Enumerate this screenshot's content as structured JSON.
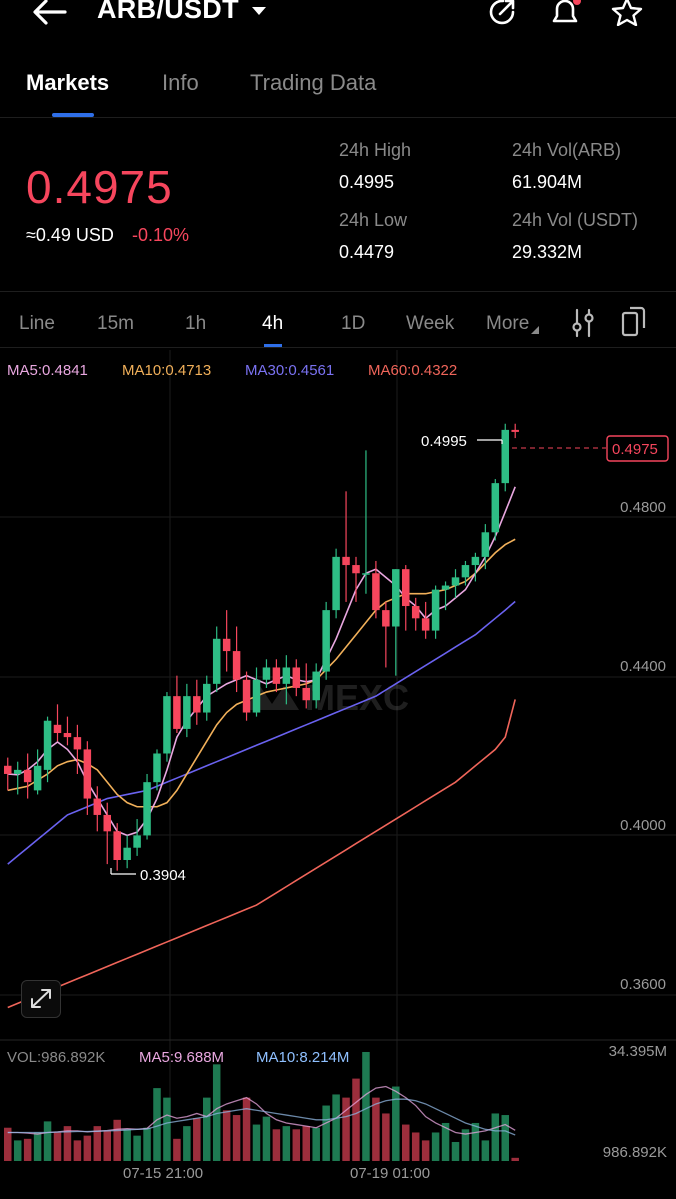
{
  "header": {
    "pair": "ARB/USDT",
    "icons": [
      "back-arrow-icon",
      "dropdown-caret-icon",
      "share-icon",
      "bell-icon",
      "star-icon"
    ]
  },
  "tabs": [
    {
      "label": "Markets",
      "active": true
    },
    {
      "label": "Info",
      "active": false
    },
    {
      "label": "Trading Data",
      "active": false
    }
  ],
  "ticker": {
    "price": "0.4975",
    "usd_approx": "≈0.49 USD",
    "change_pct": "-0.10%",
    "high_label": "24h High",
    "high_value": "0.4995",
    "low_label": "24h Low",
    "low_value": "0.4479",
    "vol_arb_label": "24h Vol(ARB)",
    "vol_arb_value": "61.904M",
    "vol_usdt_label": "24h Vol (USDT)",
    "vol_usdt_value": "29.332M"
  },
  "intervals": [
    {
      "label": "Line"
    },
    {
      "label": "15m"
    },
    {
      "label": "1h"
    },
    {
      "label": "4h",
      "active": true
    },
    {
      "label": "1D"
    },
    {
      "label": "Week"
    },
    {
      "label": "More"
    }
  ],
  "chart_data": {
    "type": "candlestick",
    "ma_legend": {
      "ma5": "MA5:0.4841",
      "ma10": "MA10:0.4713",
      "ma30": "MA30:0.4561",
      "ma60": "MA60:0.4322"
    },
    "y_ticks": [
      "0.4800",
      "0.4400",
      "0.4000",
      "0.3600"
    ],
    "ylim": [
      0.3515,
      0.5175
    ],
    "x_labels": [
      "07-15 21:00",
      "07-19 01:00"
    ],
    "current_price_tag": "0.4975",
    "high_marker": "0.4995",
    "low_marker": "0.3904",
    "watermark": "MEXC",
    "colors": {
      "up": "#2ebd85",
      "down": "#f6465d",
      "ma5": "#e9a7e0",
      "ma10": "#f1b05a",
      "ma30": "#6a62f0",
      "ma60": "#f0655a"
    },
    "candles": [
      {
        "o": 0.416,
        "h": 0.418,
        "l": 0.41,
        "c": 0.414
      },
      {
        "o": 0.414,
        "h": 0.417,
        "l": 0.409,
        "c": 0.415
      },
      {
        "o": 0.415,
        "h": 0.419,
        "l": 0.408,
        "c": 0.412
      },
      {
        "o": 0.41,
        "h": 0.42,
        "l": 0.409,
        "c": 0.416
      },
      {
        "o": 0.415,
        "h": 0.428,
        "l": 0.412,
        "c": 0.427
      },
      {
        "o": 0.426,
        "h": 0.431,
        "l": 0.422,
        "c": 0.424
      },
      {
        "o": 0.424,
        "h": 0.428,
        "l": 0.421,
        "c": 0.423
      },
      {
        "o": 0.423,
        "h": 0.426,
        "l": 0.414,
        "c": 0.42
      },
      {
        "o": 0.42,
        "h": 0.422,
        "l": 0.404,
        "c": 0.408
      },
      {
        "o": 0.408,
        "h": 0.411,
        "l": 0.4,
        "c": 0.404
      },
      {
        "o": 0.404,
        "h": 0.407,
        "l": 0.392,
        "c": 0.4
      },
      {
        "o": 0.4,
        "h": 0.402,
        "l": 0.3904,
        "c": 0.393
      },
      {
        "o": 0.393,
        "h": 0.399,
        "l": 0.391,
        "c": 0.396
      },
      {
        "o": 0.396,
        "h": 0.403,
        "l": 0.394,
        "c": 0.399
      },
      {
        "o": 0.399,
        "h": 0.414,
        "l": 0.398,
        "c": 0.412
      },
      {
        "o": 0.412,
        "h": 0.42,
        "l": 0.41,
        "c": 0.419
      },
      {
        "o": 0.419,
        "h": 0.434,
        "l": 0.417,
        "c": 0.433
      },
      {
        "o": 0.433,
        "h": 0.438,
        "l": 0.424,
        "c": 0.425
      },
      {
        "o": 0.425,
        "h": 0.436,
        "l": 0.423,
        "c": 0.433
      },
      {
        "o": 0.433,
        "h": 0.437,
        "l": 0.426,
        "c": 0.429
      },
      {
        "o": 0.429,
        "h": 0.438,
        "l": 0.427,
        "c": 0.436
      },
      {
        "o": 0.436,
        "h": 0.45,
        "l": 0.434,
        "c": 0.447
      },
      {
        "o": 0.447,
        "h": 0.454,
        "l": 0.439,
        "c": 0.444
      },
      {
        "o": 0.444,
        "h": 0.45,
        "l": 0.434,
        "c": 0.437
      },
      {
        "o": 0.437,
        "h": 0.439,
        "l": 0.427,
        "c": 0.429
      },
      {
        "o": 0.429,
        "h": 0.44,
        "l": 0.428,
        "c": 0.437
      },
      {
        "o": 0.437,
        "h": 0.442,
        "l": 0.435,
        "c": 0.44
      },
      {
        "o": 0.44,
        "h": 0.442,
        "l": 0.434,
        "c": 0.436
      },
      {
        "o": 0.436,
        "h": 0.443,
        "l": 0.431,
        "c": 0.44
      },
      {
        "o": 0.44,
        "h": 0.442,
        "l": 0.433,
        "c": 0.435
      },
      {
        "o": 0.435,
        "h": 0.441,
        "l": 0.43,
        "c": 0.432
      },
      {
        "o": 0.432,
        "h": 0.441,
        "l": 0.43,
        "c": 0.439
      },
      {
        "o": 0.439,
        "h": 0.456,
        "l": 0.437,
        "c": 0.454
      },
      {
        "o": 0.454,
        "h": 0.469,
        "l": 0.452,
        "c": 0.467
      },
      {
        "o": 0.467,
        "h": 0.483,
        "l": 0.456,
        "c": 0.465
      },
      {
        "o": 0.465,
        "h": 0.467,
        "l": 0.456,
        "c": 0.463
      },
      {
        "o": 0.463,
        "h": 0.493,
        "l": 0.458,
        "c": 0.463
      },
      {
        "o": 0.463,
        "h": 0.466,
        "l": 0.452,
        "c": 0.454
      },
      {
        "o": 0.454,
        "h": 0.456,
        "l": 0.44,
        "c": 0.45
      },
      {
        "o": 0.45,
        "h": 0.464,
        "l": 0.438,
        "c": 0.464
      },
      {
        "o": 0.464,
        "h": 0.465,
        "l": 0.449,
        "c": 0.455
      },
      {
        "o": 0.455,
        "h": 0.457,
        "l": 0.449,
        "c": 0.452
      },
      {
        "o": 0.452,
        "h": 0.456,
        "l": 0.447,
        "c": 0.449
      },
      {
        "o": 0.449,
        "h": 0.46,
        "l": 0.447,
        "c": 0.459
      },
      {
        "o": 0.459,
        "h": 0.461,
        "l": 0.454,
        "c": 0.46
      },
      {
        "o": 0.46,
        "h": 0.464,
        "l": 0.457,
        "c": 0.462
      },
      {
        "o": 0.462,
        "h": 0.466,
        "l": 0.46,
        "c": 0.465
      },
      {
        "o": 0.465,
        "h": 0.468,
        "l": 0.461,
        "c": 0.467
      },
      {
        "o": 0.467,
        "h": 0.475,
        "l": 0.464,
        "c": 0.473
      },
      {
        "o": 0.473,
        "h": 0.486,
        "l": 0.471,
        "c": 0.485
      },
      {
        "o": 0.485,
        "h": 0.4995,
        "l": 0.483,
        "c": 0.498
      },
      {
        "o": 0.498,
        "h": 0.4995,
        "l": 0.496,
        "c": 0.4975
      }
    ],
    "ma5": [
      0.414,
      0.4138,
      0.415,
      0.417,
      0.42,
      0.4218,
      0.42,
      0.417,
      0.412,
      0.408,
      0.404,
      0.4,
      0.399,
      0.3998,
      0.403,
      0.408,
      0.415,
      0.423,
      0.427,
      0.43,
      0.433,
      0.4345,
      0.436,
      0.437,
      0.438,
      0.437,
      0.436,
      0.437,
      0.438,
      0.437,
      0.4365,
      0.437,
      0.442,
      0.447,
      0.453,
      0.459,
      0.463,
      0.464,
      0.462,
      0.46,
      0.457,
      0.455,
      0.452,
      0.454,
      0.455,
      0.457,
      0.459,
      0.463,
      0.467,
      0.472,
      0.478,
      0.4841
    ],
    "ma10": [
      0.41,
      0.4105,
      0.411,
      0.4125,
      0.414,
      0.416,
      0.417,
      0.4175,
      0.4165,
      0.415,
      0.412,
      0.409,
      0.407,
      0.406,
      0.406,
      0.406,
      0.407,
      0.41,
      0.414,
      0.418,
      0.422,
      0.426,
      0.429,
      0.431,
      0.432,
      0.433,
      0.434,
      0.4345,
      0.435,
      0.4355,
      0.436,
      0.437,
      0.4395,
      0.442,
      0.445,
      0.448,
      0.451,
      0.454,
      0.456,
      0.457,
      0.458,
      0.458,
      0.458,
      0.4585,
      0.459,
      0.46,
      0.461,
      0.463,
      0.4655,
      0.468,
      0.47,
      0.4713
    ],
    "ma30": [
      0.392,
      0.394,
      0.396,
      0.398,
      0.4,
      0.402,
      0.404,
      0.405,
      0.406,
      0.407,
      0.408,
      0.4085,
      0.409,
      0.4095,
      0.41,
      0.411,
      0.412,
      0.413,
      0.414,
      0.415,
      0.416,
      0.417,
      0.418,
      0.419,
      0.42,
      0.421,
      0.422,
      0.423,
      0.424,
      0.425,
      0.426,
      0.427,
      0.428,
      0.429,
      0.43,
      0.431,
      0.432,
      0.433,
      0.4345,
      0.436,
      0.4375,
      0.439,
      0.4405,
      0.442,
      0.4435,
      0.445,
      0.4465,
      0.448,
      0.45,
      0.452,
      0.454,
      0.4561
    ],
    "ma60": [
      0.357,
      0.358,
      0.359,
      0.36,
      0.361,
      0.362,
      0.363,
      0.364,
      0.365,
      0.366,
      0.367,
      0.368,
      0.369,
      0.37,
      0.371,
      0.372,
      0.373,
      0.374,
      0.375,
      0.376,
      0.377,
      0.378,
      0.379,
      0.38,
      0.381,
      0.382,
      0.3835,
      0.385,
      0.3865,
      0.388,
      0.3895,
      0.391,
      0.3925,
      0.394,
      0.3955,
      0.397,
      0.3985,
      0.4,
      0.4015,
      0.403,
      0.4045,
      0.406,
      0.4075,
      0.409,
      0.4105,
      0.412,
      0.414,
      0.416,
      0.418,
      0.42,
      0.423,
      0.4322
    ]
  },
  "volume_data": {
    "legend_vol": "VOL:986.892K",
    "legend_ma5": "MA5:9.688M",
    "legend_ma10": "MA10:8.214M",
    "max_label": "34.395M",
    "last_label": "986.892K",
    "ylim": [
      0,
      34.395
    ],
    "bars": [
      10.5,
      6.5,
      7.0,
      9.0,
      12.5,
      9.0,
      11.0,
      6.5,
      8.0,
      11.0,
      9.5,
      13.0,
      10.0,
      8.0,
      10.5,
      23.0,
      20.0,
      7.0,
      11.0,
      13.5,
      20.0,
      30.5,
      16.0,
      14.5,
      20.0,
      11.5,
      14.0,
      10.0,
      11.0,
      10.0,
      11.0,
      10.5,
      17.5,
      21.0,
      20.0,
      26.0,
      34.4,
      20.0,
      15.0,
      23.5,
      11.5,
      9.0,
      6.5,
      9.0,
      12.0,
      6.0,
      10.0,
      12.0,
      6.5,
      15.0,
      14.5,
      1.0
    ],
    "ma5": [
      9.0,
      9.0,
      8.8,
      8.5,
      9.0,
      9.2,
      9.5,
      9.5,
      9.2,
      9.4,
      9.6,
      10.0,
      10.2,
      10.0,
      10.3,
      13.0,
      14.5,
      13.5,
      14.0,
      15.0,
      14.0,
      16.5,
      18.0,
      19.0,
      20.0,
      18.0,
      15.0,
      13.0,
      12.0,
      11.5,
      11.0,
      10.5,
      12.0,
      13.5,
      16.0,
      18.5,
      21.0,
      23.0,
      23.5,
      22.0,
      20.0,
      17.5,
      14.0,
      12.0,
      10.5,
      9.0,
      8.5,
      9.0,
      9.5,
      10.5,
      11.5,
      9.688
    ],
    "ma10": [
      9.0,
      9.0,
      9.0,
      9.0,
      9.0,
      9.1,
      9.2,
      9.3,
      9.3,
      9.4,
      9.5,
      9.6,
      9.8,
      10.0,
      10.1,
      11.0,
      12.0,
      12.5,
      13.0,
      13.5,
      14.0,
      15.0,
      15.5,
      16.0,
      16.5,
      16.0,
      15.5,
      15.0,
      14.5,
      14.0,
      13.5,
      13.0,
      13.0,
      13.5,
      14.0,
      15.0,
      16.5,
      18.0,
      19.0,
      19.5,
      19.5,
      19.0,
      18.0,
      16.5,
      15.0,
      13.5,
      12.0,
      11.0,
      10.0,
      9.5,
      9.5,
      8.214
    ]
  }
}
